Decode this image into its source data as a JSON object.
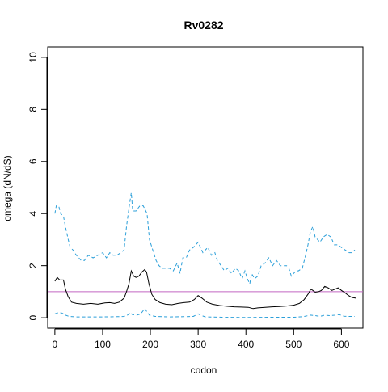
{
  "chart_data": {
    "type": "line",
    "title": "Rv0282",
    "xlabel": "codon",
    "ylabel": "omega (dN/dS)",
    "xlim": [
      -15,
      645
    ],
    "ylim": [
      -0.4,
      10.4
    ],
    "x_ticks": [
      0,
      100,
      200,
      300,
      400,
      500,
      600
    ],
    "y_ticks": [
      0,
      2,
      4,
      6,
      8,
      10
    ],
    "reference_line": {
      "y": 1,
      "color": "#c266c2"
    },
    "series": [
      {
        "role": "upper",
        "color": "#2b9fd9",
        "style": "dashed",
        "points": [
          [
            0,
            4.0
          ],
          [
            3,
            4.3
          ],
          [
            8,
            4.3
          ],
          [
            12,
            4.0
          ],
          [
            18,
            3.9
          ],
          [
            22,
            3.5
          ],
          [
            28,
            3.0
          ],
          [
            32,
            2.7
          ],
          [
            38,
            2.6
          ],
          [
            45,
            2.4
          ],
          [
            55,
            2.2
          ],
          [
            62,
            2.2
          ],
          [
            70,
            2.4
          ],
          [
            80,
            2.3
          ],
          [
            90,
            2.4
          ],
          [
            100,
            2.5
          ],
          [
            108,
            2.3
          ],
          [
            115,
            2.5
          ],
          [
            122,
            2.4
          ],
          [
            130,
            2.4
          ],
          [
            138,
            2.5
          ],
          [
            145,
            2.6
          ],
          [
            150,
            3.5
          ],
          [
            155,
            4.2
          ],
          [
            160,
            4.8
          ],
          [
            163,
            4.1
          ],
          [
            170,
            4.1
          ],
          [
            178,
            4.3
          ],
          [
            185,
            4.3
          ],
          [
            193,
            4.0
          ],
          [
            198,
            3.0
          ],
          [
            205,
            2.6
          ],
          [
            212,
            2.2
          ],
          [
            218,
            2.0
          ],
          [
            225,
            1.9
          ],
          [
            232,
            1.9
          ],
          [
            240,
            1.9
          ],
          [
            248,
            1.8
          ],
          [
            256,
            2.1
          ],
          [
            262,
            1.7
          ],
          [
            268,
            2.3
          ],
          [
            275,
            2.3
          ],
          [
            282,
            2.6
          ],
          [
            290,
            2.7
          ],
          [
            300,
            2.9
          ],
          [
            310,
            2.5
          ],
          [
            320,
            2.7
          ],
          [
            328,
            2.4
          ],
          [
            335,
            2.5
          ],
          [
            340,
            2.2
          ],
          [
            348,
            2.0
          ],
          [
            355,
            1.8
          ],
          [
            362,
            1.9
          ],
          [
            370,
            1.7
          ],
          [
            378,
            1.9
          ],
          [
            385,
            1.8
          ],
          [
            392,
            1.5
          ],
          [
            398,
            1.8
          ],
          [
            403,
            1.5
          ],
          [
            408,
            1.3
          ],
          [
            412,
            1.7
          ],
          [
            418,
            1.5
          ],
          [
            425,
            1.6
          ],
          [
            432,
            2.0
          ],
          [
            440,
            2.1
          ],
          [
            448,
            2.3
          ],
          [
            456,
            2.0
          ],
          [
            464,
            2.2
          ],
          [
            472,
            2.0
          ],
          [
            478,
            2.0
          ],
          [
            485,
            2.0
          ],
          [
            490,
            1.9
          ],
          [
            495,
            1.6
          ],
          [
            500,
            1.7
          ],
          [
            505,
            1.8
          ],
          [
            510,
            1.8
          ],
          [
            518,
            1.9
          ],
          [
            525,
            2.4
          ],
          [
            530,
            2.8
          ],
          [
            535,
            3.3
          ],
          [
            540,
            3.5
          ],
          [
            545,
            3.1
          ],
          [
            550,
            3.0
          ],
          [
            555,
            2.9
          ],
          [
            562,
            3.1
          ],
          [
            570,
            3.2
          ],
          [
            578,
            3.1
          ],
          [
            585,
            2.8
          ],
          [
            592,
            2.8
          ],
          [
            600,
            2.7
          ],
          [
            608,
            2.6
          ],
          [
            616,
            2.5
          ],
          [
            622,
            2.5
          ],
          [
            628,
            2.6
          ]
        ]
      },
      {
        "role": "estimate",
        "color": "#000000",
        "style": "solid",
        "points": [
          [
            0,
            1.4
          ],
          [
            5,
            1.55
          ],
          [
            10,
            1.45
          ],
          [
            18,
            1.45
          ],
          [
            22,
            1.1
          ],
          [
            28,
            0.8
          ],
          [
            35,
            0.6
          ],
          [
            45,
            0.55
          ],
          [
            60,
            0.52
          ],
          [
            75,
            0.55
          ],
          [
            90,
            0.52
          ],
          [
            105,
            0.57
          ],
          [
            115,
            0.58
          ],
          [
            125,
            0.55
          ],
          [
            135,
            0.6
          ],
          [
            145,
            0.75
          ],
          [
            150,
            1.0
          ],
          [
            155,
            1.3
          ],
          [
            160,
            1.8
          ],
          [
            165,
            1.6
          ],
          [
            170,
            1.55
          ],
          [
            176,
            1.6
          ],
          [
            182,
            1.75
          ],
          [
            188,
            1.85
          ],
          [
            192,
            1.75
          ],
          [
            197,
            1.3
          ],
          [
            203,
            0.9
          ],
          [
            210,
            0.7
          ],
          [
            220,
            0.58
          ],
          [
            232,
            0.52
          ],
          [
            245,
            0.5
          ],
          [
            258,
            0.55
          ],
          [
            270,
            0.58
          ],
          [
            282,
            0.6
          ],
          [
            292,
            0.7
          ],
          [
            300,
            0.85
          ],
          [
            308,
            0.75
          ],
          [
            318,
            0.6
          ],
          [
            330,
            0.52
          ],
          [
            345,
            0.47
          ],
          [
            360,
            0.44
          ],
          [
            375,
            0.42
          ],
          [
            390,
            0.41
          ],
          [
            405,
            0.4
          ],
          [
            415,
            0.35
          ],
          [
            425,
            0.38
          ],
          [
            440,
            0.4
          ],
          [
            455,
            0.42
          ],
          [
            470,
            0.43
          ],
          [
            485,
            0.45
          ],
          [
            500,
            0.48
          ],
          [
            512,
            0.55
          ],
          [
            522,
            0.7
          ],
          [
            530,
            0.9
          ],
          [
            536,
            1.1
          ],
          [
            540,
            1.05
          ],
          [
            545,
            0.98
          ],
          [
            552,
            1.0
          ],
          [
            558,
            1.05
          ],
          [
            565,
            1.2
          ],
          [
            572,
            1.15
          ],
          [
            580,
            1.05
          ],
          [
            587,
            1.1
          ],
          [
            593,
            1.15
          ],
          [
            600,
            1.05
          ],
          [
            608,
            0.95
          ],
          [
            615,
            0.85
          ],
          [
            622,
            0.78
          ],
          [
            630,
            0.75
          ]
        ]
      },
      {
        "role": "lower",
        "color": "#2b9fd9",
        "style": "dashed",
        "points": [
          [
            0,
            0.15
          ],
          [
            8,
            0.2
          ],
          [
            15,
            0.18
          ],
          [
            22,
            0.1
          ],
          [
            30,
            0.05
          ],
          [
            45,
            0.03
          ],
          [
            70,
            0.03
          ],
          [
            100,
            0.03
          ],
          [
            130,
            0.04
          ],
          [
            145,
            0.05
          ],
          [
            152,
            0.1
          ],
          [
            158,
            0.2
          ],
          [
            162,
            0.12
          ],
          [
            172,
            0.1
          ],
          [
            180,
            0.15
          ],
          [
            188,
            0.35
          ],
          [
            192,
            0.25
          ],
          [
            198,
            0.1
          ],
          [
            210,
            0.05
          ],
          [
            240,
            0.03
          ],
          [
            270,
            0.04
          ],
          [
            290,
            0.05
          ],
          [
            300,
            0.15
          ],
          [
            305,
            0.1
          ],
          [
            315,
            0.03
          ],
          [
            350,
            0.02
          ],
          [
            400,
            0.01
          ],
          [
            450,
            0.02
          ],
          [
            500,
            0.02
          ],
          [
            520,
            0.04
          ],
          [
            535,
            0.1
          ],
          [
            545,
            0.08
          ],
          [
            555,
            0.05
          ],
          [
            565,
            0.1
          ],
          [
            575,
            0.08
          ],
          [
            588,
            0.1
          ],
          [
            595,
            0.12
          ],
          [
            605,
            0.06
          ],
          [
            615,
            0.05
          ],
          [
            628,
            0.05
          ]
        ]
      }
    ],
    "grid": false,
    "legend": "none"
  }
}
